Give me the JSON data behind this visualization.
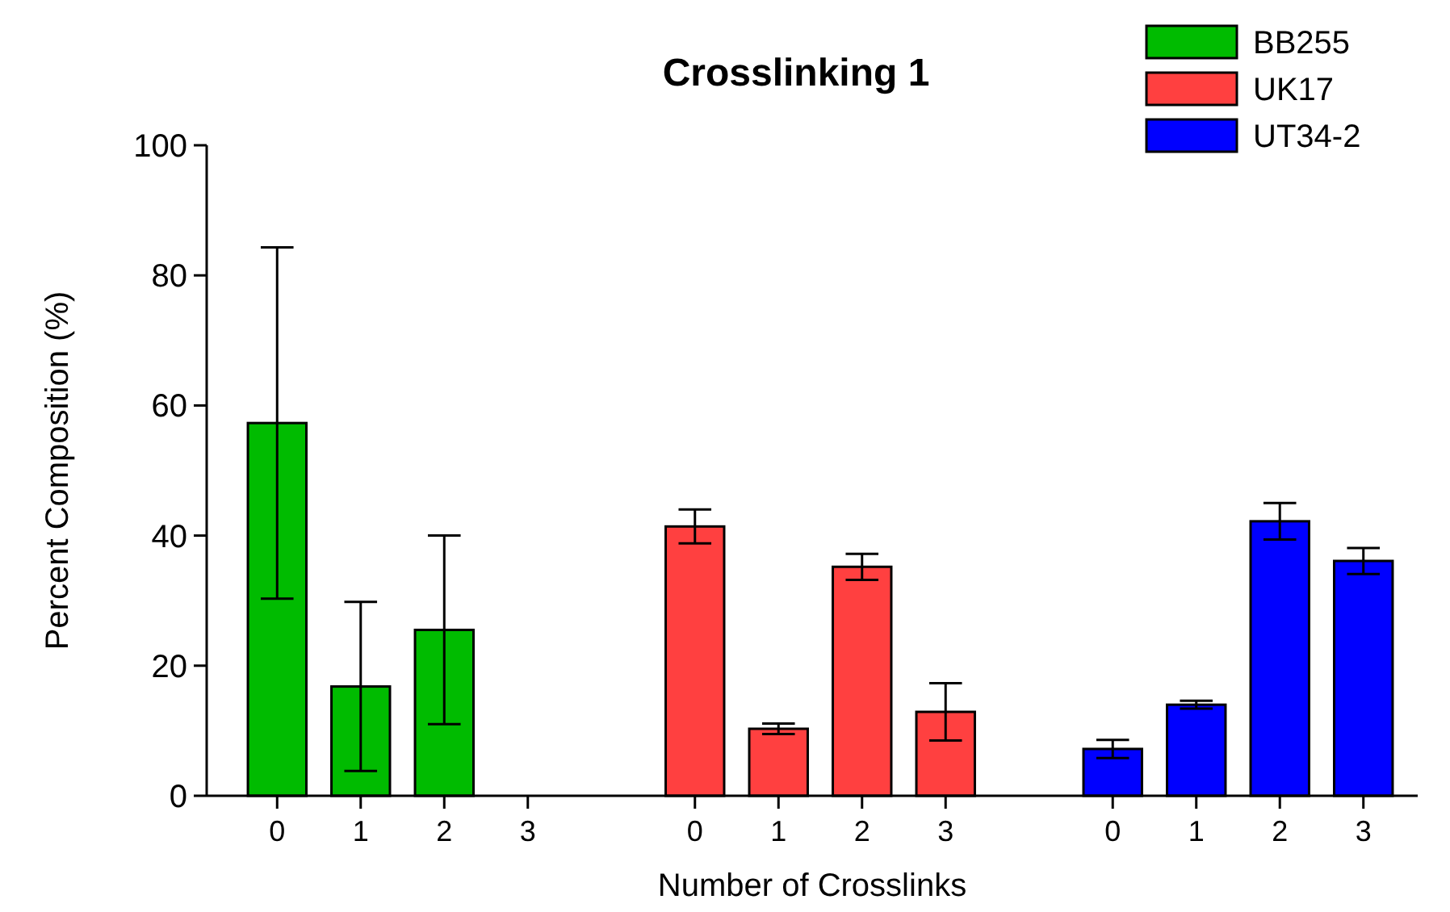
{
  "chart_data": {
    "type": "bar",
    "title": "Crosslinking 1",
    "xlabel": "Number of Crosslinks",
    "ylabel": "Percent Composition (%)",
    "categories": [
      "0",
      "1",
      "2",
      "3",
      null,
      "0",
      "1",
      "2",
      "3",
      null,
      "0",
      "1",
      "2",
      "3"
    ],
    "series": [
      {
        "name": "BB255",
        "color": "#00bb00",
        "values": [
          57.3,
          16.8,
          25.5,
          0,
          null,
          null,
          null,
          null,
          null,
          null,
          null,
          null,
          null,
          null
        ],
        "errors": [
          27,
          13,
          14.5,
          null,
          null,
          null,
          null,
          null,
          null,
          null,
          null,
          null,
          null,
          null
        ]
      },
      {
        "name": "UK17",
        "color": "#ff4040",
        "values": [
          null,
          null,
          null,
          null,
          null,
          41.4,
          10.3,
          35.2,
          12.9,
          null,
          null,
          null,
          null,
          null
        ],
        "errors": [
          null,
          null,
          null,
          null,
          null,
          2.6,
          0.8,
          2,
          4.4,
          null,
          null,
          null,
          null,
          null
        ]
      },
      {
        "name": "UT34-2",
        "color": "#0000ff",
        "values": [
          null,
          null,
          null,
          null,
          null,
          null,
          null,
          null,
          null,
          null,
          7.2,
          14,
          42.2,
          36.1
        ],
        "errors": [
          null,
          null,
          null,
          null,
          null,
          null,
          null,
          null,
          null,
          null,
          1.4,
          0.6,
          2.8,
          2
        ]
      }
    ],
    "ylim": [
      0,
      100
    ],
    "yticks": [
      0,
      20,
      40,
      60,
      80,
      100
    ],
    "grid": false,
    "legend": "top right"
  }
}
